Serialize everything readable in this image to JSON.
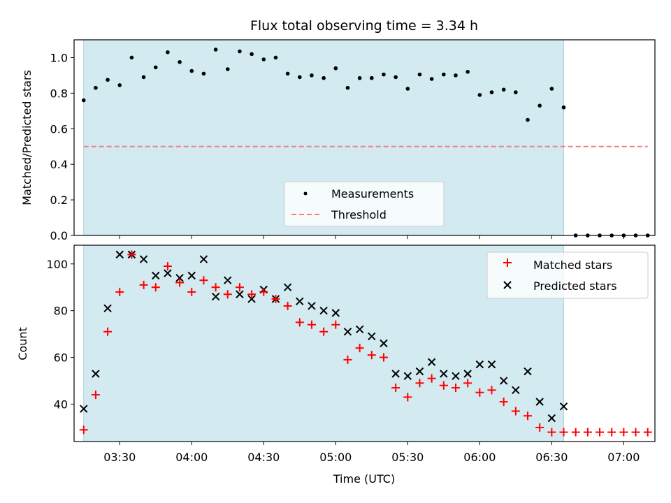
{
  "chart_data": [
    {
      "type": "scatter",
      "title": "Flux total observing time = 3.34 h",
      "ylabel": "Matched/Predicted stars",
      "xlabel": "",
      "ylim": [
        0,
        1.1
      ],
      "yticks": [
        "0.0",
        "0.2",
        "0.4",
        "0.6",
        "0.8",
        "1.0"
      ],
      "yticks_values": [
        0,
        0.2,
        0.4,
        0.6,
        0.8,
        1.0
      ],
      "x_range": [
        "03:11",
        "07:13"
      ],
      "shaded_span": [
        "03:15",
        "06:35"
      ],
      "shade_color": "#d3eaf0",
      "legend": {
        "placement": "lower-center",
        "entries": [
          "Measurements",
          "Threshold"
        ]
      },
      "series": [
        {
          "name": "Measurements",
          "marker": "dot",
          "color": "#000000",
          "x": [
            "03:15",
            "03:20",
            "03:25",
            "03:30",
            "03:35",
            "03:40",
            "03:45",
            "03:50",
            "03:55",
            "04:00",
            "04:05",
            "04:10",
            "04:15",
            "04:20",
            "04:25",
            "04:30",
            "04:35",
            "04:40",
            "04:45",
            "04:50",
            "04:55",
            "05:00",
            "05:05",
            "05:10",
            "05:15",
            "05:20",
            "05:25",
            "05:30",
            "05:35",
            "05:40",
            "05:45",
            "05:50",
            "05:55",
            "06:00",
            "06:05",
            "06:10",
            "06:15",
            "06:20",
            "06:25",
            "06:30",
            "06:35",
            "06:40",
            "06:45",
            "06:50",
            "06:55",
            "07:00",
            "07:05",
            "07:10"
          ],
          "y": [
            0.76,
            0.83,
            0.875,
            0.845,
            1.0,
            0.89,
            0.945,
            1.03,
            0.975,
            0.925,
            0.91,
            1.045,
            0.935,
            1.035,
            1.02,
            0.99,
            1.0,
            0.91,
            0.89,
            0.9,
            0.885,
            0.94,
            0.83,
            0.885,
            0.885,
            0.905,
            0.89,
            0.825,
            0.905,
            0.88,
            0.905,
            0.9,
            0.92,
            0.79,
            0.805,
            0.82,
            0.805,
            0.65,
            0.73,
            0.825,
            0.72,
            0,
            0,
            0,
            0,
            0,
            0,
            0
          ]
        },
        {
          "name": "Threshold",
          "line": "dashed",
          "color": "#f08080",
          "x": [
            "03:15",
            "07:10"
          ],
          "y": [
            0.5,
            0.5
          ]
        }
      ]
    },
    {
      "type": "scatter",
      "title": "",
      "ylabel": "Count",
      "xlabel": "Time (UTC)",
      "ylim": [
        24,
        108
      ],
      "yticks": [
        "40",
        "60",
        "80",
        "100"
      ],
      "yticks_values": [
        40,
        60,
        80,
        100
      ],
      "xticks": [
        "03:30",
        "04:00",
        "04:30",
        "05:00",
        "05:30",
        "06:00",
        "06:30",
        "07:00"
      ],
      "x_range": [
        "03:11",
        "07:13"
      ],
      "shaded_span": [
        "03:15",
        "06:35"
      ],
      "legend": {
        "placement": "top-right",
        "entries": [
          "Matched stars",
          "Predicted stars"
        ]
      },
      "series": [
        {
          "name": "Matched stars",
          "marker": "plus",
          "color": "#ff0000",
          "x": [
            "03:15",
            "03:20",
            "03:25",
            "03:30",
            "03:35",
            "03:40",
            "03:45",
            "03:50",
            "03:55",
            "04:00",
            "04:05",
            "04:10",
            "04:15",
            "04:20",
            "04:25",
            "04:30",
            "04:35",
            "04:40",
            "04:45",
            "04:50",
            "04:55",
            "05:00",
            "05:05",
            "05:10",
            "05:15",
            "05:20",
            "05:25",
            "05:30",
            "05:35",
            "05:40",
            "05:45",
            "05:50",
            "05:55",
            "06:00",
            "06:05",
            "06:10",
            "06:15",
            "06:20",
            "06:25",
            "06:30",
            "06:35",
            "06:40",
            "06:45",
            "06:50",
            "06:55",
            "07:00",
            "07:05",
            "07:10"
          ],
          "y": [
            29,
            44,
            71,
            88,
            104,
            91,
            90,
            99,
            92,
            88,
            93,
            90,
            87,
            90,
            87,
            88,
            85,
            82,
            75,
            74,
            71,
            74,
            59,
            64,
            61,
            60,
            47,
            43,
            49,
            51,
            48,
            47,
            49,
            45,
            46,
            41,
            37,
            35,
            30,
            28,
            28,
            28,
            28,
            28,
            28,
            28,
            28,
            28
          ]
        },
        {
          "name": "Predicted stars",
          "marker": "x",
          "color": "#000000",
          "x": [
            "03:15",
            "03:20",
            "03:25",
            "03:30",
            "03:35",
            "03:40",
            "03:45",
            "03:50",
            "03:55",
            "04:00",
            "04:05",
            "04:10",
            "04:15",
            "04:20",
            "04:25",
            "04:30",
            "04:35",
            "04:40",
            "04:45",
            "04:50",
            "04:55",
            "05:00",
            "05:05",
            "05:10",
            "05:15",
            "05:20",
            "05:25",
            "05:30",
            "05:35",
            "05:40",
            "05:45",
            "05:50",
            "05:55",
            "06:00",
            "06:05",
            "06:10",
            "06:15",
            "06:20",
            "06:25",
            "06:30",
            "06:35"
          ],
          "y": [
            38,
            53,
            81,
            104,
            104,
            102,
            95,
            96,
            94,
            95,
            102,
            86,
            93,
            87,
            85,
            89,
            85,
            90,
            84,
            82,
            80,
            79,
            71,
            72,
            69,
            66,
            53,
            52,
            54,
            58,
            53,
            52,
            53,
            57,
            57,
            50,
            46,
            54,
            41,
            34,
            39
          ]
        }
      ]
    }
  ]
}
